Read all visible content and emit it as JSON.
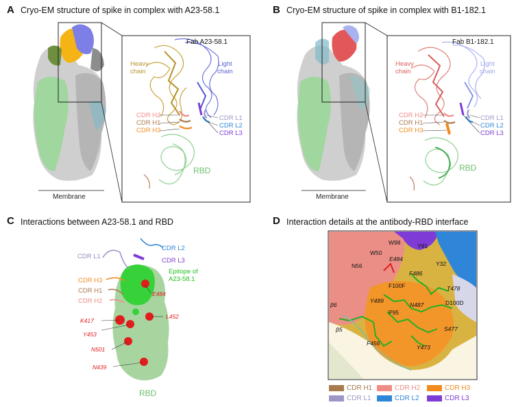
{
  "panelA": {
    "letter": "A",
    "title": "Cryo-EM structure of spike in complex with A23-58.1",
    "fab_label": "Fab A23-58.1",
    "heavy": [
      "Heavy",
      "chain"
    ],
    "light": [
      "Light",
      "chain"
    ],
    "cdr_left": [
      "CDR H2",
      "CDR H1",
      "CDR H3"
    ],
    "cdr_right": [
      "CDR L1",
      "CDR L2",
      "CDR L3"
    ],
    "rbd": "RBD",
    "membrane": "Membrane"
  },
  "panelB": {
    "letter": "B",
    "title": "Cryo-EM structure of spike in complex with B1-182.1",
    "fab_label": "Fab B1-182.1",
    "heavy": [
      "Heavy",
      "chain"
    ],
    "light": [
      "Light",
      "chain"
    ],
    "cdr_left": [
      "CDR H2",
      "CDR H1",
      "CDR H3"
    ],
    "cdr_right": [
      "CDR L1",
      "CDR L2",
      "CDR L3"
    ],
    "rbd": "RBD",
    "membrane": "Membrane"
  },
  "panelC": {
    "letter": "C",
    "title": "Interactions between A23-58.1 and RBD",
    "cdr_l1": "CDR L1",
    "cdr_l2": "CDR L2",
    "cdr_l3": "CDR L3",
    "cdr_h3": "CDR H3",
    "cdr_h1": "CDR H1",
    "cdr_h2": "CDR H2",
    "epitope": [
      "Epitope of",
      "A23-58.1"
    ],
    "residues": [
      "E484",
      "K417",
      "L452",
      "Y453",
      "N501",
      "N439"
    ],
    "rbd": "RBD"
  },
  "panelD": {
    "letter": "D",
    "title": "Interaction details at the antibody-RBD interface",
    "residues": [
      "W98",
      "Y91",
      "W50",
      "E484",
      "N56",
      "Y32",
      "F486",
      "F100F",
      "T478",
      "Y489",
      "N487",
      "D100D",
      "β6",
      "P95",
      "S477",
      "β5",
      "F456",
      "Y473"
    ],
    "italic_residues": [
      "E484",
      "F486",
      "T478",
      "Y489",
      "N487",
      "S477",
      "F456",
      "Y473"
    ]
  },
  "legend": [
    {
      "label": "CDR H1",
      "color": "#a87a4e"
    },
    {
      "label": "CDR H2",
      "color": "#ef8c86"
    },
    {
      "label": "CDR H3",
      "color": "#f28a1e"
    },
    {
      "label": "CDR L1",
      "color": "#9b98c8"
    },
    {
      "label": "CDR L2",
      "color": "#2f86d8"
    },
    {
      "label": "CDR L3",
      "color": "#7f3bd6"
    }
  ],
  "colors": {
    "rbd": "#8ccf8e",
    "heavy_a": "#c9a33a",
    "light": "#6d74de",
    "heavy_b": "#e07e7a",
    "residue": "#e01c1c",
    "epitope": "#2fc52f"
  }
}
